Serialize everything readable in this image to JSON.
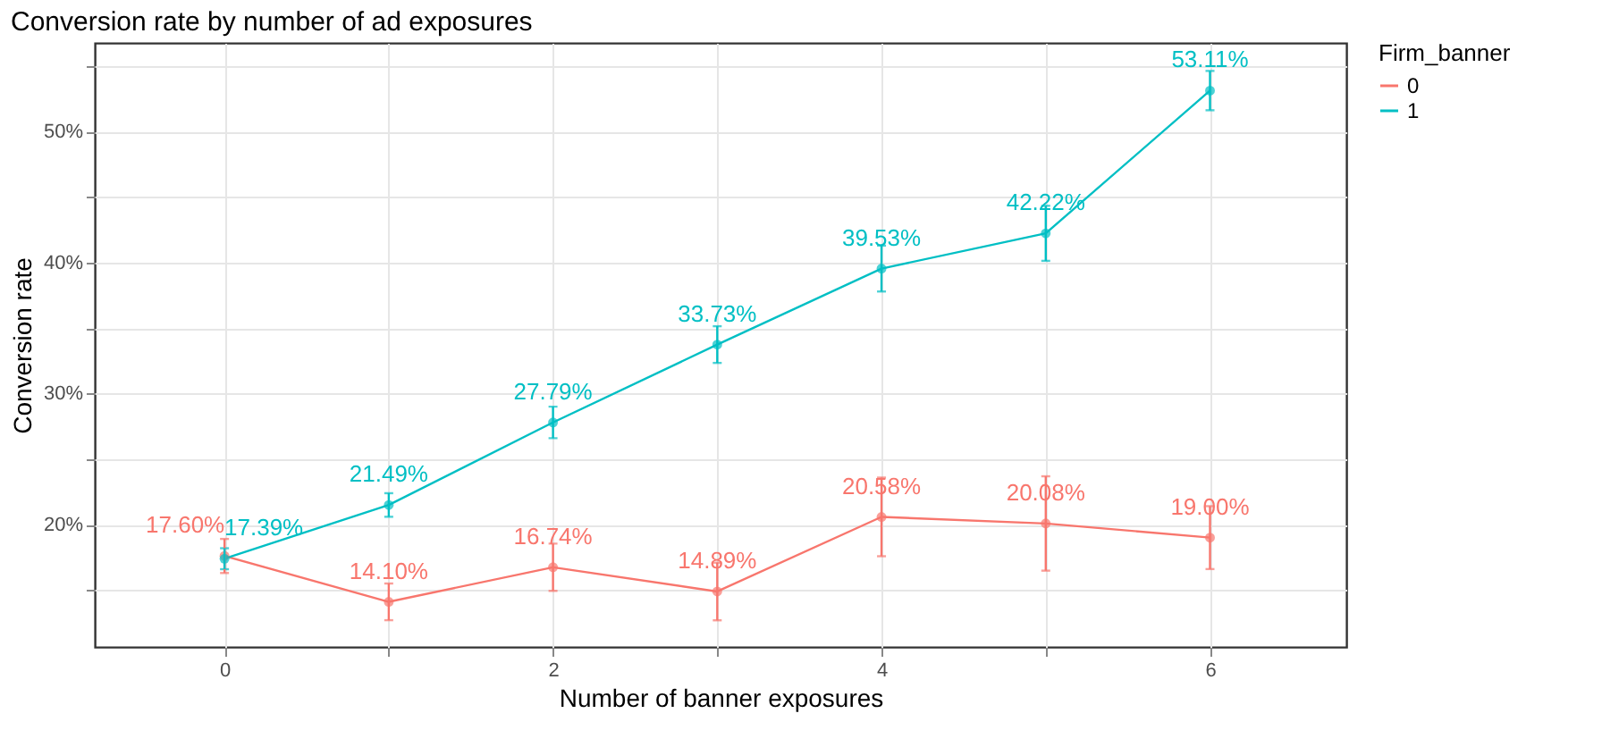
{
  "chart_data": {
    "type": "line",
    "title": "Conversion rate by number of ad exposures",
    "xlabel": "Number of banner exposures",
    "ylabel": "Conversion rate",
    "legend_title": "Firm_banner",
    "x": [
      0,
      1,
      2,
      3,
      4,
      5,
      6
    ],
    "series": [
      {
        "name": "0",
        "color": "#f8766d",
        "values": [
          17.6,
          14.1,
          16.74,
          14.89,
          20.58,
          20.08,
          19.0
        ],
        "errors": [
          1.3,
          1.4,
          1.8,
          2.2,
          3.0,
          3.6,
          2.4
        ],
        "value_labels": [
          "17.60%",
          "14.10%",
          "16.74%",
          "14.89%",
          "20.58%",
          "20.08%",
          "19.00%"
        ]
      },
      {
        "name": "1",
        "color": "#00bfc4",
        "values": [
          17.39,
          21.49,
          27.79,
          33.73,
          39.53,
          42.22,
          53.11
        ],
        "errors": [
          0.8,
          0.9,
          1.2,
          1.4,
          1.75,
          2.1,
          1.5
        ],
        "value_labels": [
          "17.39%",
          "21.49%",
          "27.79%",
          "33.73%",
          "39.53%",
          "42.22%",
          "53.11%"
        ]
      }
    ],
    "xlim": [
      -0.79,
      6.83
    ],
    "xticks": [
      0,
      {
        "value": 1,
        "label": null
      },
      2,
      {
        "value": 3,
        "label": null
      },
      4,
      {
        "value": 5,
        "label": null
      },
      6
    ],
    "ylim": [
      10.66,
      56.75
    ],
    "yticks": [
      {
        "value": 15,
        "label": null
      },
      {
        "value": 20,
        "label": "20%"
      },
      {
        "value": 25,
        "label": null
      },
      {
        "value": 30,
        "label": "30%"
      },
      {
        "value": 35,
        "label": null
      },
      {
        "value": 40,
        "label": "40%"
      },
      {
        "value": 45,
        "label": null
      },
      {
        "value": 50,
        "label": "50%"
      },
      {
        "value": 55,
        "label": null
      }
    ],
    "grid": true,
    "legend": "right",
    "marker": "circle",
    "line_style": "solid"
  }
}
